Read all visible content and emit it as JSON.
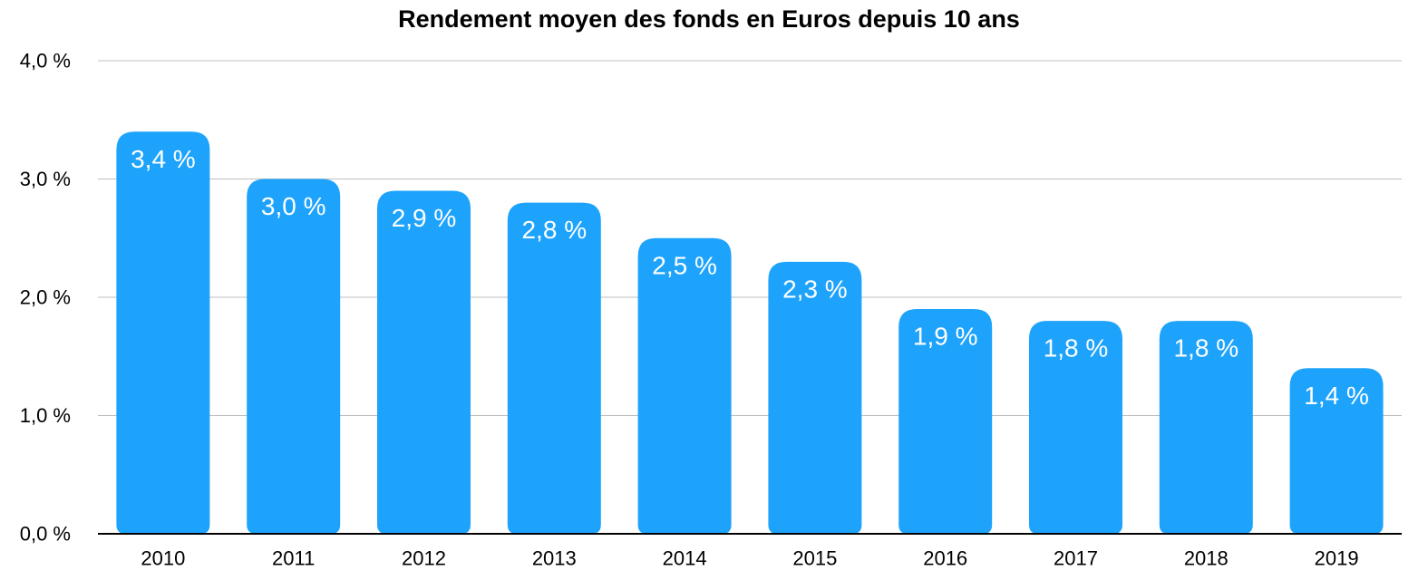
{
  "chart_data": {
    "type": "bar",
    "title": "Rendement moyen des fonds en Euros depuis 10 ans",
    "xlabel": "",
    "ylabel": "",
    "categories": [
      "2010",
      "2011",
      "2012",
      "2013",
      "2014",
      "2015",
      "2016",
      "2017",
      "2018",
      "2019"
    ],
    "values": [
      3.4,
      3.0,
      2.9,
      2.8,
      2.5,
      2.3,
      1.9,
      1.8,
      1.8,
      1.4
    ],
    "value_labels": [
      "3,4 %",
      "3,0 %",
      "2,9 %",
      "2,8 %",
      "2,5 %",
      "2,3 %",
      "1,9 %",
      "1,8 %",
      "1,8 %",
      "1,4 %"
    ],
    "ylim": [
      0,
      4
    ],
    "y_ticks": [
      0,
      1,
      2,
      3,
      4
    ],
    "y_tick_labels": [
      "0,0 %",
      "1,0 %",
      "2,0 %",
      "3,0 %",
      "4,0 %"
    ],
    "grid": true,
    "legend": "none",
    "colors": {
      "bar": "#1EA3FC",
      "grid": "#BFBFBF",
      "axis": "#000000",
      "value_label": "#FFFFFF"
    }
  }
}
